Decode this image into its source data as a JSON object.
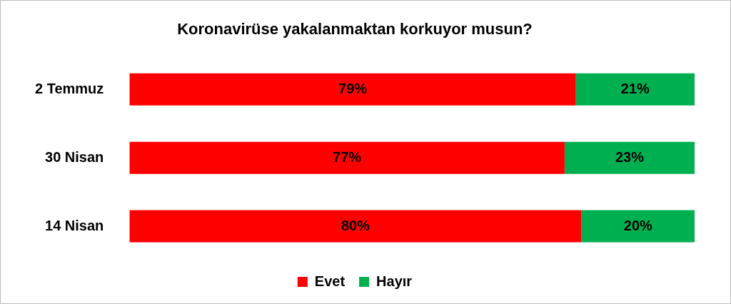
{
  "chart_data": {
    "type": "bar",
    "orientation": "horizontal",
    "stacked": true,
    "title": "Koronavirüse yakalanmaktan korkuyor musun?",
    "categories": [
      "2 Temmuz",
      "30 Nisan",
      "14 Nisan"
    ],
    "series": [
      {
        "name": "Evet",
        "color": "#ff0000",
        "values": [
          79,
          77,
          80
        ],
        "value_labels": [
          "79%",
          "77%",
          "80%"
        ]
      },
      {
        "name": "Hayır",
        "color": "#00b050",
        "values": [
          21,
          23,
          20
        ],
        "value_labels": [
          "21%",
          "23%",
          "20%"
        ]
      }
    ],
    "legend": "bottom"
  }
}
